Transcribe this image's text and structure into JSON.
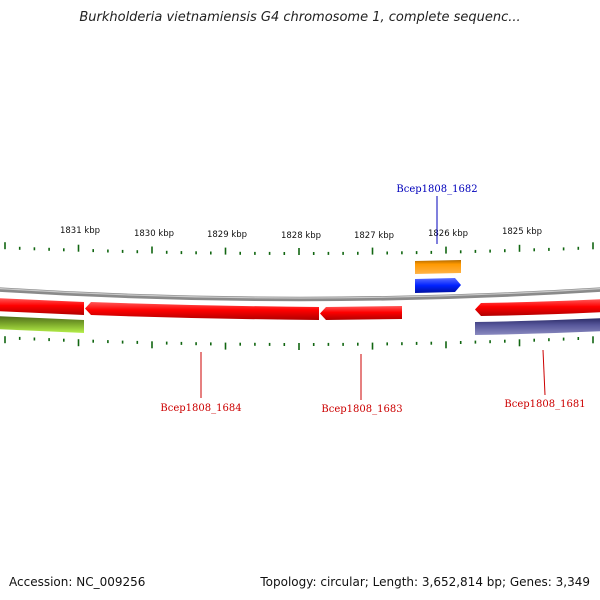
{
  "title": "Burkholderia vietnamiensis G4 chromosome 1, complete sequenc...",
  "footer": {
    "accession": "Accession: NC_009256",
    "summary": "Topology: circular; Length: 3,652,814 bp; Genes: 3,349"
  },
  "ruler": {
    "labels": [
      "1831 kbp",
      "1830 kbp",
      "1829 kbp",
      "1828 kbp",
      "1827 kbp",
      "1826 kbp",
      "1825 kbp"
    ]
  },
  "genes": [
    {
      "name": "Bcep1808_1684",
      "color": "#cc0000"
    },
    {
      "name": "Bcep1808_1683",
      "color": "#cc0000"
    },
    {
      "name": "Bcep1808_1682",
      "color": "#0000bb"
    },
    {
      "name": "Bcep1808_1681",
      "color": "#cc0000"
    }
  ],
  "colors": {
    "forward_gene": "#ff0000",
    "reverse_gene": "#0022ff",
    "orange_feature": "#ff9900",
    "purple_feature": "#555599",
    "green_feature": "#88cc33",
    "ticks": "#116611",
    "backbone": "#8a8a8a"
  }
}
